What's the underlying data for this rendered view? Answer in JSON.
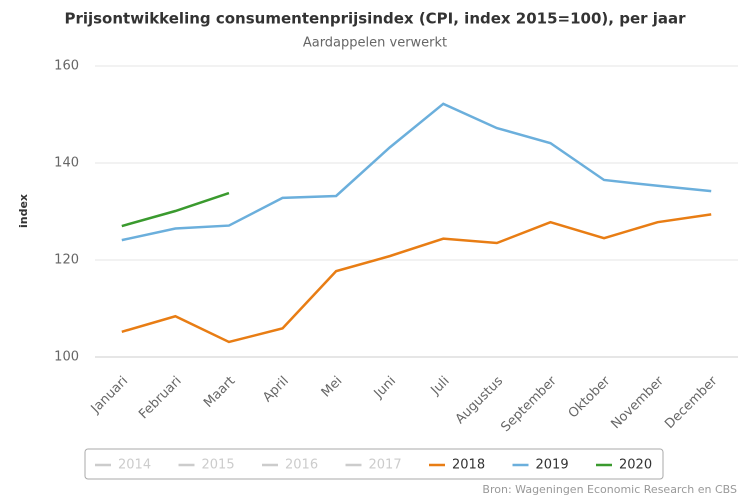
{
  "chart_data": {
    "type": "line",
    "title": "Prijsontwikkeling consumentenprijsindex (CPI, index 2015=100), per jaar",
    "subtitle": "Aardappelen verwerkt",
    "y_label": "index",
    "source": "Bron: Wageningen Economic Research en CBS",
    "categories": [
      "Januari",
      "Februari",
      "Maart",
      "April",
      "Mei",
      "Juni",
      "Juli",
      "Augustus",
      "September",
      "Oktober",
      "November",
      "December"
    ],
    "ylim": [
      100,
      160
    ],
    "yticks": [
      100,
      120,
      140,
      160
    ],
    "grid": true,
    "series": [
      {
        "name": "2014",
        "color": "#cccccc",
        "visible": false,
        "values": [
          null,
          null,
          null,
          null,
          null,
          null,
          null,
          null,
          null,
          null,
          null,
          null
        ]
      },
      {
        "name": "2015",
        "color": "#cccccc",
        "visible": false,
        "values": [
          null,
          null,
          null,
          null,
          null,
          null,
          null,
          null,
          null,
          null,
          null,
          null
        ]
      },
      {
        "name": "2016",
        "color": "#cccccc",
        "visible": false,
        "values": [
          null,
          null,
          null,
          null,
          null,
          null,
          null,
          null,
          null,
          null,
          null,
          null
        ]
      },
      {
        "name": "2017",
        "color": "#cccccc",
        "visible": false,
        "values": [
          null,
          null,
          null,
          null,
          null,
          null,
          null,
          null,
          null,
          null,
          null,
          null
        ]
      },
      {
        "name": "2018",
        "color": "#e87d14",
        "visible": true,
        "values": [
          105.2,
          108.4,
          103.1,
          105.9,
          117.7,
          120.8,
          124.4,
          123.5,
          127.8,
          124.5,
          127.8,
          129.4
        ]
      },
      {
        "name": "2019",
        "color": "#6bafdc",
        "visible": true,
        "values": [
          124.1,
          126.5,
          127.1,
          132.8,
          133.2,
          143.2,
          152.2,
          147.2,
          144.1,
          136.5,
          135.3,
          134.2
        ]
      },
      {
        "name": "2020",
        "color": "#3a9a2e",
        "visible": true,
        "values": [
          127.0,
          130.1,
          133.8,
          null,
          null,
          null,
          null,
          null,
          null,
          null,
          null,
          null
        ]
      }
    ]
  }
}
